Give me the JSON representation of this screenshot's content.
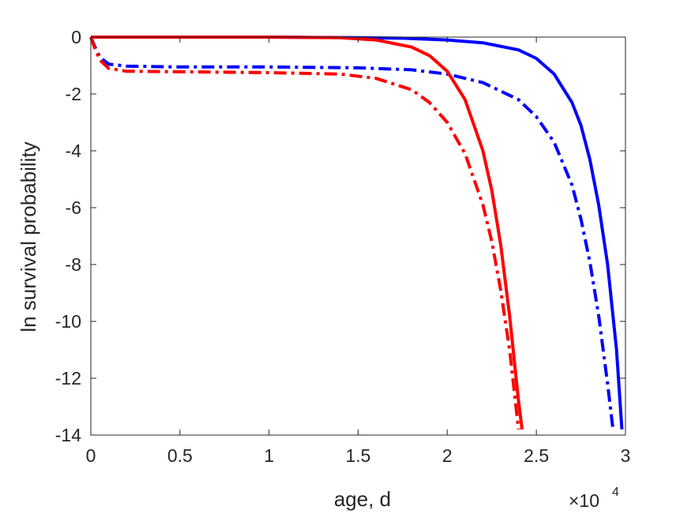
{
  "chart_data": {
    "type": "line",
    "title": "",
    "xlabel": "age, d",
    "ylabel": "ln survival probability",
    "xlim": [
      0,
      30000
    ],
    "ylim": [
      -14,
      0
    ],
    "x_exponent_label": {
      "base": "×10",
      "exp": "4"
    },
    "xticks": [
      0,
      5000,
      10000,
      15000,
      20000,
      25000,
      30000
    ],
    "xtick_labels": [
      "0",
      "0.5",
      "1",
      "1.5",
      "2",
      "2.5",
      "3"
    ],
    "yticks": [
      0,
      -2,
      -4,
      -6,
      -8,
      -10,
      -12,
      -14
    ],
    "ytick_labels": [
      "0",
      "-2",
      "-4",
      "-6",
      "-8",
      "-10",
      "-12",
      "-14"
    ],
    "grid": false,
    "legend": "none",
    "series": [
      {
        "color": "#0000ff",
        "style": "solid",
        "x": [
          0,
          5000,
          10000,
          15000,
          17500,
          20000,
          22000,
          24000,
          25000,
          26000,
          27000,
          27500,
          28000,
          28500,
          29000,
          29500,
          29800
        ],
        "y": [
          0,
          0,
          0,
          -0.02,
          -0.04,
          -0.1,
          -0.2,
          -0.45,
          -0.75,
          -1.3,
          -2.3,
          -3.1,
          -4.3,
          -5.9,
          -8.0,
          -11.0,
          -13.8
        ]
      },
      {
        "color": "#0000ff",
        "style": "dashdot",
        "x": [
          0,
          200,
          500,
          1000,
          2000,
          5000,
          10000,
          15000,
          18000,
          20000,
          22000,
          24000,
          25000,
          26000,
          27000,
          27500,
          28000,
          28500,
          29000,
          29300
        ],
        "y": [
          0,
          -0.3,
          -0.7,
          -0.95,
          -1.02,
          -1.05,
          -1.05,
          -1.08,
          -1.15,
          -1.3,
          -1.6,
          -2.2,
          -2.8,
          -3.7,
          -5.2,
          -6.4,
          -7.9,
          -9.8,
          -12.2,
          -13.8
        ]
      },
      {
        "color": "#ff0000",
        "style": "solid",
        "x": [
          0,
          5000,
          10000,
          14000,
          16000,
          18000,
          19000,
          20000,
          21000,
          22000,
          22500,
          23000,
          23500,
          24000,
          24200
        ],
        "y": [
          0,
          0,
          0,
          -0.02,
          -0.1,
          -0.35,
          -0.65,
          -1.2,
          -2.2,
          -4.0,
          -5.4,
          -7.3,
          -9.8,
          -12.8,
          -13.8
        ]
      },
      {
        "color": "#ff0000",
        "style": "dashdot",
        "x": [
          0,
          200,
          500,
          1000,
          2000,
          5000,
          10000,
          14000,
          16000,
          18000,
          19000,
          20000,
          21000,
          22000,
          22500,
          23000,
          23500,
          24000
        ],
        "y": [
          0,
          -0.35,
          -0.8,
          -1.1,
          -1.2,
          -1.22,
          -1.25,
          -1.3,
          -1.45,
          -1.85,
          -2.3,
          -3.0,
          -4.1,
          -5.9,
          -7.2,
          -8.9,
          -11.0,
          -13.8
        ]
      }
    ]
  }
}
